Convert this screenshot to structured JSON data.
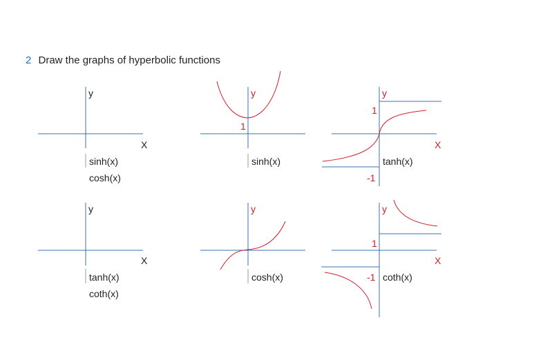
{
  "heading": {
    "number": "2",
    "text": "Draw the graphs of hyperbolic functions"
  },
  "labels": {
    "y": "y",
    "x": "X",
    "one": "1",
    "minus_one": "-1",
    "sinh": "sinh(x)",
    "cosh": "cosh(x)",
    "tanh": "tanh(x)",
    "coth": "coth(x)"
  },
  "colors": {
    "axis": "#3b6fb6",
    "curve": "#d0202a",
    "text": "#222222",
    "accent": "#2a6fb0"
  }
}
